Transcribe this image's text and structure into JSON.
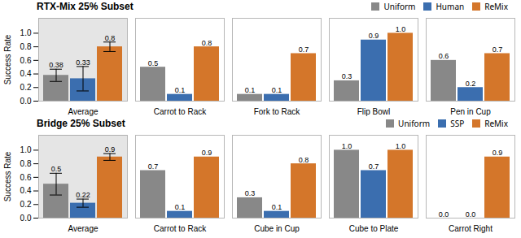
{
  "chart_data": [
    {
      "type": "bar",
      "title": "RTX-Mix 25% Subset",
      "categories": [
        "Average",
        "Carrot to Rack",
        "Fork to Rack",
        "Flip Bowl",
        "Pen in Cup"
      ],
      "series": [
        {
          "name": "Uniform",
          "color": "#888888",
          "values": [
            0.38,
            0.5,
            0.1,
            0.3,
            0.6
          ],
          "value_labels": [
            "0.38",
            "0.5",
            "0.1",
            "0.3",
            "0.6"
          ],
          "errors": [
            0.09,
            0,
            0,
            0,
            0
          ]
        },
        {
          "name": "Human",
          "color": "#3B6EAF",
          "values": [
            0.33,
            0.1,
            0.1,
            0.9,
            0.2
          ],
          "value_labels": [
            "0.33",
            "0.1",
            "0.1",
            "0.9",
            "0.2"
          ],
          "errors": [
            0.18,
            0,
            0,
            0,
            0
          ]
        },
        {
          "name": "ReMix",
          "color": "#D4762A",
          "values": [
            0.8,
            0.8,
            0.7,
            1.0,
            0.7
          ],
          "value_labels": [
            "0.8",
            "0.8",
            "0.7",
            "1.0",
            "0.7"
          ],
          "errors": [
            0.07,
            0,
            0,
            0,
            0
          ]
        }
      ],
      "ylabel": "Success Rate",
      "ylim": [
        0,
        1.22
      ],
      "yticks": [
        {
          "value": 0,
          "label": "0.0"
        },
        0.2,
        0.4,
        0.6,
        0.8,
        {
          "value": 1,
          "label": "1.0"
        }
      ],
      "grid": false,
      "legend": "upper right",
      "data_labels": true
    },
    {
      "type": "bar",
      "title": "Bridge 25% Subset",
      "categories": [
        "Average",
        "Carrot to Rack",
        "Cube in Cup",
        "Cube to Plate",
        "Carrot Right"
      ],
      "series": [
        {
          "name": "Uniform",
          "color": "#888888",
          "values": [
            0.5,
            0.7,
            0.3,
            1.0,
            0.0
          ],
          "value_labels": [
            "0.5",
            "0.7",
            "0.3",
            "1.0",
            "0.0"
          ],
          "errors": [
            0.16,
            0,
            0,
            0,
            0
          ]
        },
        {
          "name": "SSP",
          "color": "#3B6EAF",
          "values": [
            0.22,
            0.1,
            0.1,
            0.7,
            0.0
          ],
          "value_labels": [
            "0.22",
            "0.1",
            "0.1",
            "0.7",
            "0.0"
          ],
          "errors": [
            0.06,
            0,
            0,
            0,
            0
          ]
        },
        {
          "name": "ReMix",
          "color": "#D4762A",
          "values": [
            0.9,
            0.9,
            0.8,
            1.0,
            0.9
          ],
          "value_labels": [
            "0.9",
            "0.9",
            "0.8",
            "1.0",
            "0.9"
          ],
          "errors": [
            0.05,
            0,
            0,
            0,
            0
          ]
        }
      ],
      "ylabel": "Success Rate",
      "ylim": [
        0,
        1.22
      ],
      "yticks": [
        {
          "value": 0,
          "label": "0.0"
        },
        0.2,
        0.4,
        0.6,
        0.8,
        {
          "value": 1,
          "label": "1.0"
        }
      ],
      "grid": false,
      "legend": "upper right",
      "data_labels": true
    }
  ]
}
